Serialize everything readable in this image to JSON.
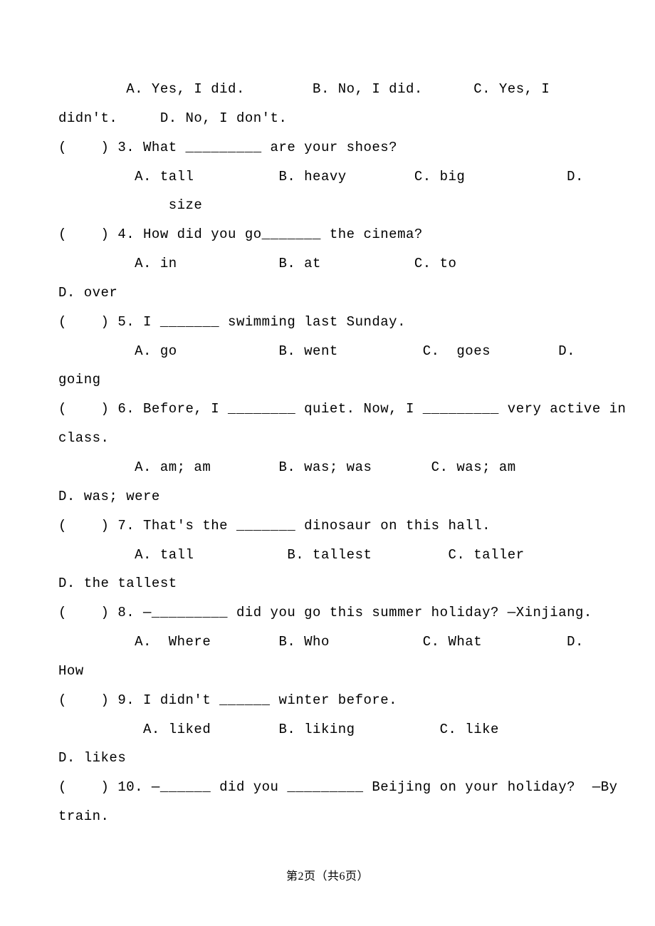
{
  "lines": [
    "        A. Yes, I did.        B. No, I did.      C. Yes, I",
    "didn't.     D. No, I don't.",
    "(    ) 3. What _________ are your shoes?",
    "         A. tall          B. heavy        C. big            D.",
    "             size",
    "(    ) 4. How did you go_______ the cinema?",
    "         A. in            B. at           C. to",
    "D. over",
    "(    ) 5. I _______ swimming last Sunday.",
    "         A. go            B. went          C.  goes        D.",
    "going",
    "(    ) 6. Before, I ________ quiet. Now, I _________ very active in",
    "class.",
    "         A. am; am        B. was; was       C. was; am",
    "D. was; were",
    "(    ) 7. That's the _______ dinosaur on this hall.",
    "         A. tall           B. tallest         C. taller",
    "D. the tallest",
    "(    ) 8. —_________ did you go this summer holiday? —Xinjiang.",
    "         A.  Where        B. Who           C. What          D.",
    "How",
    "(    ) 9. I didn't ______ winter before.",
    "          A. liked        B. liking          C. like",
    "D. likes",
    "(    ) 10. —______ did you _________ Beijing on your holiday?  —By",
    "train."
  ],
  "footer": "第2页（共6页）"
}
